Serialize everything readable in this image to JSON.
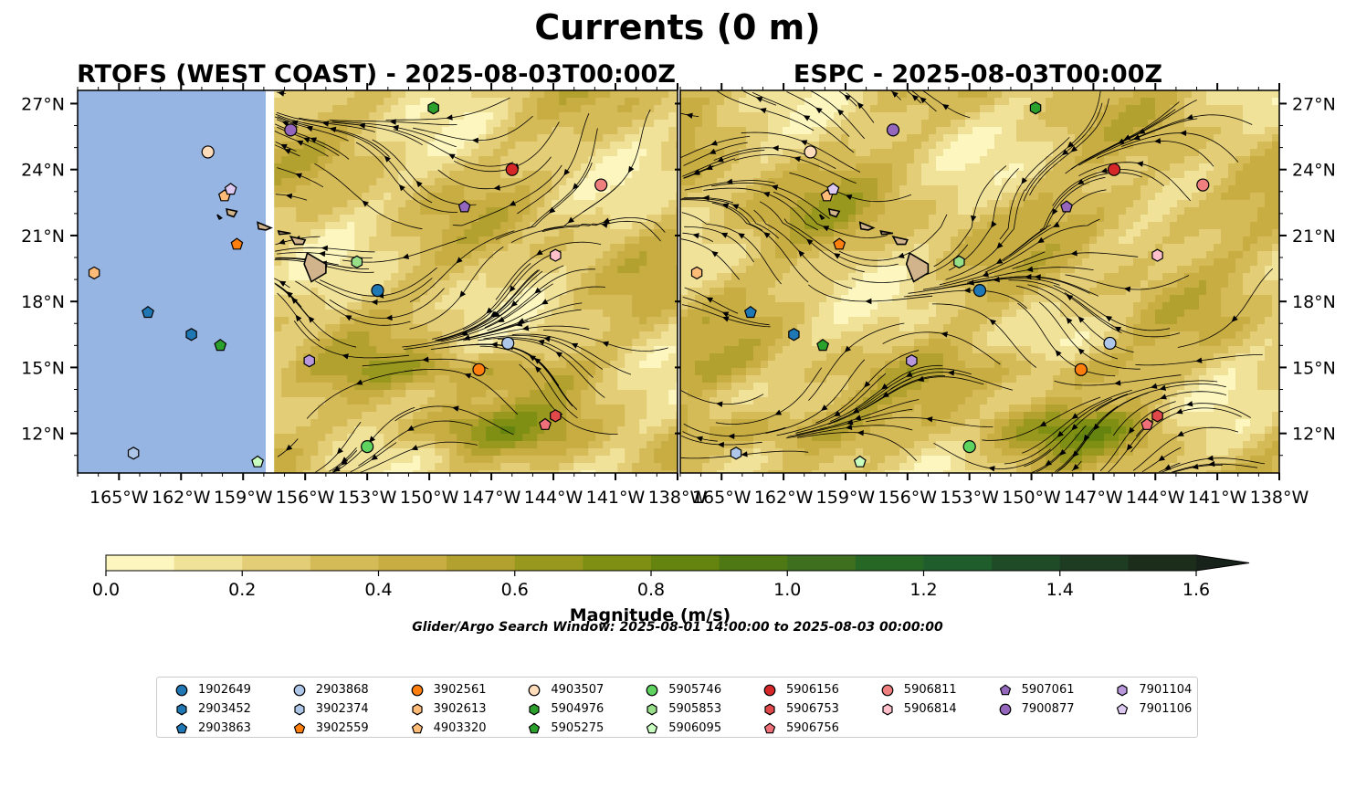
{
  "figure": {
    "suptitle": "Currents (0 m)",
    "search_window": "Glider/Argo Search Window: 2025-08-01 14:00:00 to 2025-08-03 00:00:00"
  },
  "panels": [
    {
      "title": "RTOFS (WEST COAST) - 2025-08-03T00:00Z",
      "data_extent_lon": [
        -157.5,
        -138
      ]
    },
    {
      "title": "ESPC - 2025-08-03T00:00Z",
      "data_extent_lon": [
        -167,
        -138
      ]
    }
  ],
  "map_extent": {
    "lon": [
      -167,
      -138
    ],
    "lat": [
      10.2,
      27.6
    ]
  },
  "axes": {
    "lon_ticks": [
      -165,
      -162,
      -159,
      -156,
      -153,
      -150,
      -147,
      -144,
      -141,
      -138
    ],
    "lon_tick_labels": [
      "165°W",
      "162°W",
      "159°W",
      "156°W",
      "153°W",
      "150°W",
      "147°W",
      "144°W",
      "141°W",
      "138°W"
    ],
    "lat_ticks": [
      12,
      15,
      18,
      21,
      24,
      27
    ],
    "lat_tick_labels": [
      "12°N",
      "15°N",
      "18°N",
      "21°N",
      "24°N",
      "27°N"
    ]
  },
  "colorbar": {
    "label": "Magnitude (m/s)",
    "min": 0.0,
    "max": 1.6,
    "step": 0.1,
    "extend": "max",
    "tick_values": [
      0.0,
      0.2,
      0.4,
      0.6,
      0.8,
      1.0,
      1.2,
      1.4,
      1.6
    ],
    "tick_labels": [
      "0.0",
      "0.2",
      "0.4",
      "0.6",
      "0.8",
      "1.0",
      "1.2",
      "1.4",
      "1.6"
    ],
    "colors": [
      "#fdf7bf",
      "#f1e29a",
      "#e4cd77",
      "#d5ba58",
      "#c8ad43",
      "#b2a12f",
      "#98981f",
      "#7f8f14",
      "#65840f",
      "#4e7813",
      "#3d6f1e",
      "#276726",
      "#1f5d2c",
      "#1f4b26",
      "#1e3c22",
      "#1c2e1b"
    ],
    "extend_color": "#17221a"
  },
  "colors": {
    "ocean_nodata": "#96b5e3",
    "land": "#d2b48c"
  },
  "floats": [
    {
      "id": "1902649",
      "marker": "circle",
      "color": "#1f77b4",
      "lon": -152.5,
      "lat": 18.5
    },
    {
      "id": "2903452",
      "marker": "hexagon",
      "color": "#1f77b4",
      "lon": -161.5,
      "lat": 16.5
    },
    {
      "id": "2903863",
      "marker": "pentagon",
      "color": "#1f77b4",
      "lon": -163.6,
      "lat": 17.5
    },
    {
      "id": "2903868",
      "marker": "circle",
      "color": "#aec7e8",
      "lon": -146.2,
      "lat": 16.1
    },
    {
      "id": "3902374",
      "marker": "hexagon",
      "color": "#aec7e8",
      "lon": -164.3,
      "lat": 11.1
    },
    {
      "id": "3902559",
      "marker": "pentagon",
      "color": "#ff7f0e",
      "lon": -159.3,
      "lat": 20.6
    },
    {
      "id": "3902561",
      "marker": "circle",
      "color": "#ff7f0e",
      "lon": -147.6,
      "lat": 14.9
    },
    {
      "id": "3902613",
      "marker": "hexagon",
      "color": "#ffbb78",
      "lon": -166.2,
      "lat": 19.3
    },
    {
      "id": "4903320",
      "marker": "pentagon",
      "color": "#ffbb78",
      "lon": -159.9,
      "lat": 22.8
    },
    {
      "id": "4903507",
      "marker": "circle",
      "color": "#ffddbb",
      "lon": -160.7,
      "lat": 24.8
    },
    {
      "id": "5904976",
      "marker": "hexagon",
      "color": "#2ca02c",
      "lon": -149.8,
      "lat": 26.8
    },
    {
      "id": "5905275",
      "marker": "pentagon",
      "color": "#2ca02c",
      "lon": -160.1,
      "lat": 16.0
    },
    {
      "id": "5905746",
      "marker": "circle",
      "color": "#5fd35f",
      "lon": -153.0,
      "lat": 11.4
    },
    {
      "id": "5905853",
      "marker": "hexagon",
      "color": "#98df8a",
      "lon": -153.5,
      "lat": 19.8
    },
    {
      "id": "5906095",
      "marker": "pentagon",
      "color": "#c8ffc0",
      "lon": -158.3,
      "lat": 10.7
    },
    {
      "id": "5906156",
      "marker": "circle",
      "color": "#d62728",
      "lon": -146.0,
      "lat": 24.0
    },
    {
      "id": "5906753",
      "marker": "hexagon",
      "color": "#e0484a",
      "lon": -143.9,
      "lat": 12.8
    },
    {
      "id": "5906756",
      "marker": "pentagon",
      "color": "#f0707a",
      "lon": -144.4,
      "lat": 12.4
    },
    {
      "id": "5906811",
      "marker": "circle",
      "color": "#f08080",
      "lon": -141.7,
      "lat": 23.3
    },
    {
      "id": "5906814",
      "marker": "hexagon",
      "color": "#ffc0cb",
      "lon": -143.9,
      "lat": 20.1
    },
    {
      "id": "5907061",
      "marker": "pentagon",
      "color": "#9467bd",
      "lon": -148.3,
      "lat": 22.3
    },
    {
      "id": "7900877",
      "marker": "circle",
      "color": "#9467bd",
      "lon": -156.7,
      "lat": 25.8
    },
    {
      "id": "7901104",
      "marker": "hexagon",
      "color": "#b897dd",
      "lon": -155.8,
      "lat": 15.3
    },
    {
      "id": "7901106",
      "marker": "pentagon",
      "color": "#dcc8f0",
      "lon": -159.6,
      "lat": 23.1
    }
  ],
  "legend_columns": [
    [
      "1902649",
      "2903452",
      "2903863"
    ],
    [
      "2903868",
      "3902374",
      "3902559"
    ],
    [
      "3902561",
      "3902613",
      "4903320"
    ],
    [
      "4903507",
      "5904976",
      "5905275"
    ],
    [
      "5905746",
      "5905853",
      "5906095"
    ],
    [
      "5906156",
      "5906753",
      "5906756"
    ],
    [
      "5906811",
      "5906814"
    ],
    [
      "5907061",
      "7900877"
    ],
    [
      "7901104",
      "7901106"
    ]
  ]
}
